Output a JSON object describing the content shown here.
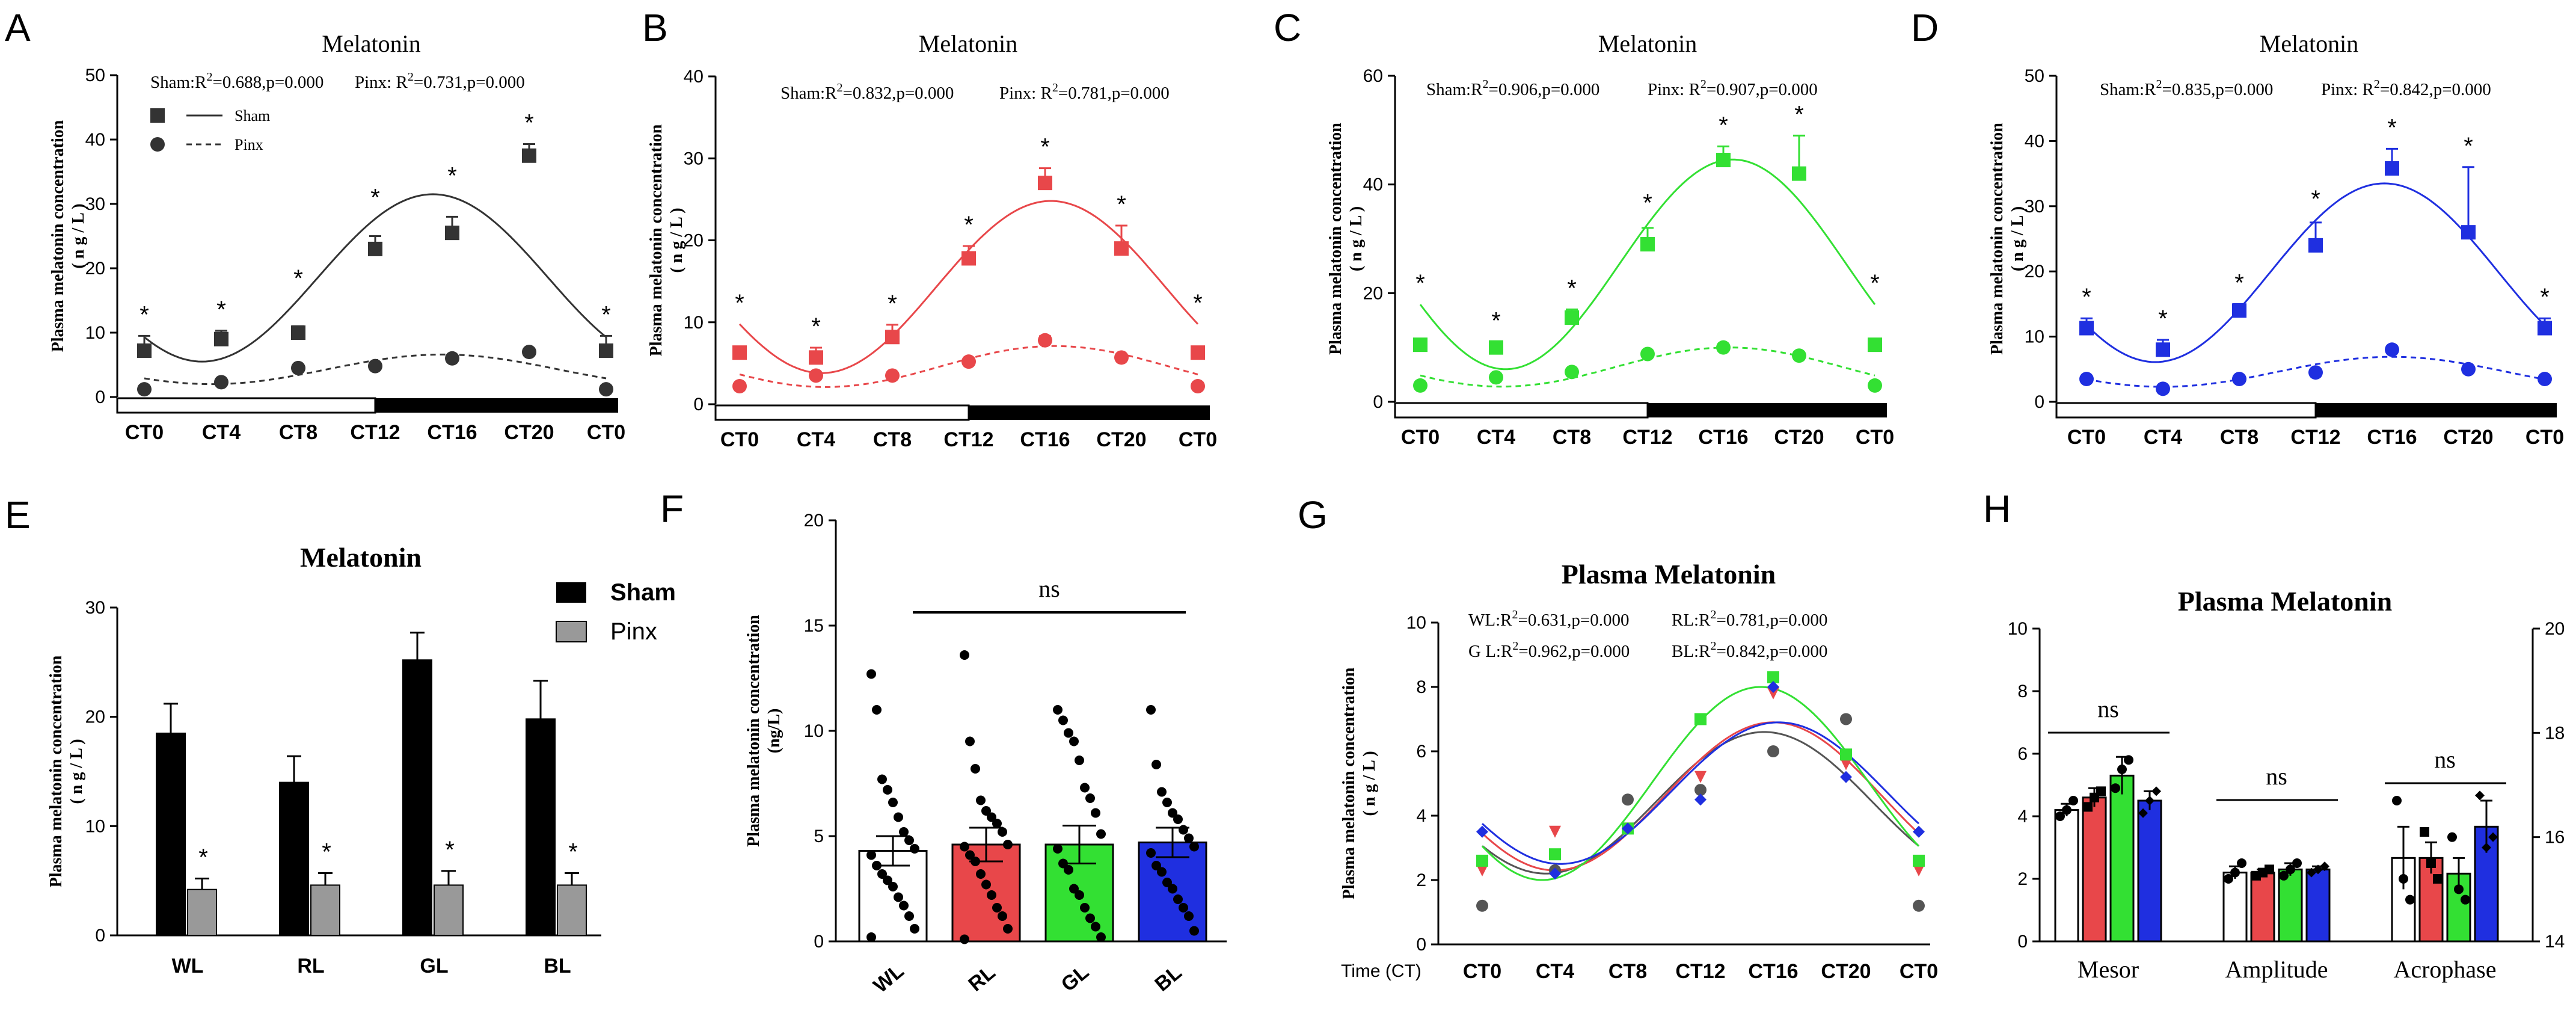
{
  "chart_data": [
    {
      "panel": "A",
      "type": "line",
      "title": "Melatonin",
      "ylabel": "Plasma melatonin concentration",
      "yunit": "( n g / L )",
      "ylim": [
        0,
        50
      ],
      "yticks": [
        "0",
        "10",
        "20",
        "30",
        "40",
        "50"
      ],
      "categories": [
        "CT0",
        "CT4",
        "CT8",
        "CT12",
        "CT16",
        "CT20",
        "CT0"
      ],
      "stats": [
        "Sham:R2=0.688,p=0.000",
        "Pinx: R2=0.731,p=0.000"
      ],
      "legend": [
        "Sham",
        "Pinx"
      ],
      "color": "#333333",
      "series": [
        {
          "name": "Sham",
          "values": [
            7.2,
            9.0,
            10.0,
            23.0,
            25.5,
            37.5,
            7.2
          ],
          "errors": [
            2.3,
            1.3,
            1.0,
            2.0,
            2.5,
            1.8,
            2.3
          ]
        },
        {
          "name": "Pinx",
          "values": [
            1.2,
            2.3,
            4.5,
            4.8,
            6.0,
            7.0,
            1.2
          ],
          "errors": [
            0.3,
            0.3,
            0.4,
            0.4,
            0.4,
            0.4,
            0.3
          ]
        }
      ],
      "fit_sham": {
        "mesor": 18.5,
        "amp": 13,
        "peak_ct": 15
      },
      "fit_pinx": {
        "mesor": 4.3,
        "amp": 2.3,
        "peak_ct": 15.5
      },
      "stars": [
        "*",
        "*",
        "*",
        "*",
        "*",
        "*",
        "*"
      ]
    },
    {
      "panel": "B",
      "type": "line",
      "title": "Melatonin",
      "ylabel": "Plasma melatonin concentration",
      "yunit": "( n g / L )",
      "ylim": [
        0,
        40
      ],
      "yticks": [
        "0",
        "10",
        "20",
        "30",
        "40"
      ],
      "categories": [
        "CT0",
        "CT4",
        "CT8",
        "CT12",
        "CT16",
        "CT20",
        "CT0"
      ],
      "stats": [
        "Sham:R2=0.832,p=0.000",
        "Pinx: R2=0.781,p=0.000"
      ],
      "color": "#e8474a",
      "series": [
        {
          "name": "Sham",
          "values": [
            6.3,
            5.7,
            8.2,
            17.8,
            27.0,
            19.0,
            6.3
          ],
          "errors": [
            0.6,
            1.2,
            1.5,
            1.5,
            1.8,
            2.8,
            0.6
          ]
        },
        {
          "name": "Pinx",
          "values": [
            2.2,
            3.5,
            3.5,
            5.2,
            7.8,
            5.7,
            2.2
          ],
          "errors": [
            0.3,
            0.3,
            0.3,
            0.4,
            0.5,
            0.4,
            0.3
          ]
        }
      ],
      "fit_sham": {
        "mesor": 14.3,
        "amp": 10.5,
        "peak_ct": 16.3
      },
      "fit_pinx": {
        "mesor": 4.6,
        "amp": 2.5,
        "peak_ct": 16.5
      },
      "stars": [
        "*",
        "*",
        "*",
        "*",
        "*",
        "*",
        "*"
      ]
    },
    {
      "panel": "C",
      "type": "line",
      "title": "Melatonin",
      "ylabel": "Plasma melatonin concentration",
      "yunit": "( n g / L )",
      "ylim": [
        0,
        60
      ],
      "yticks": [
        "0",
        "20",
        "40",
        "60"
      ],
      "categories": [
        "CT0",
        "CT4",
        "CT8",
        "CT12",
        "CT16",
        "CT20",
        "CT0"
      ],
      "stats": [
        "Sham:R2=0.906,p=0.000",
        "Pinx: R2=0.907,p=0.000"
      ],
      "color": "#33e033",
      "series": [
        {
          "name": "Sham",
          "values": [
            10.5,
            10.0,
            15.5,
            29.0,
            44.5,
            42.0,
            10.5
          ],
          "errors": [
            1.0,
            1.0,
            1.5,
            3.0,
            2.5,
            7.0,
            1.0
          ]
        },
        {
          "name": "Pinx",
          "values": [
            3.0,
            4.5,
            5.5,
            8.8,
            10.0,
            8.5,
            3.0
          ],
          "errors": [
            0.4,
            0.4,
            0.5,
            0.6,
            0.6,
            0.6,
            0.4
          ]
        }
      ],
      "fit_sham": {
        "mesor": 25.3,
        "amp": 19.3,
        "peak_ct": 16.5
      },
      "fit_pinx": {
        "mesor": 6.4,
        "amp": 3.6,
        "peak_ct": 16.3
      },
      "stars": [
        "*",
        "*",
        "*",
        "*",
        "*",
        "*",
        "*"
      ]
    },
    {
      "panel": "D",
      "type": "line",
      "title": "Melatonin",
      "ylabel": "Plasma melatonin concentration",
      "yunit": "( n g / L )",
      "ylim": [
        0,
        50
      ],
      "yticks": [
        "0",
        "10",
        "20",
        "30",
        "40",
        "50"
      ],
      "categories": [
        "CT0",
        "CT4",
        "CT8",
        "CT12",
        "CT16",
        "CT20",
        "CT0"
      ],
      "stats": [
        "Sham:R2=0.835,p=0.000",
        "Pinx: R2=0.842,p=0.000"
      ],
      "color": "#1f2fe0",
      "series": [
        {
          "name": "Sham",
          "values": [
            11.3,
            8.0,
            14.0,
            24.0,
            35.8,
            26.0,
            11.3
          ],
          "errors": [
            1.5,
            1.5,
            1.0,
            3.5,
            3.0,
            10.0,
            1.5
          ]
        },
        {
          "name": "Pinx",
          "values": [
            3.5,
            2.0,
            3.5,
            4.5,
            8.0,
            5.0,
            3.5
          ],
          "errors": [
            0.4,
            0.4,
            0.4,
            0.4,
            0.5,
            0.4,
            0.4
          ]
        }
      ],
      "fit_sham": {
        "mesor": 19.8,
        "amp": 13.7,
        "peak_ct": 15.6
      },
      "fit_pinx": {
        "mesor": 4.6,
        "amp": 2.3,
        "peak_ct": 16.0
      },
      "stars": [
        "*",
        "*",
        "*",
        "*",
        "*",
        "*",
        "*"
      ]
    },
    {
      "panel": "E",
      "type": "bar",
      "title": "Melatonin",
      "ylabel": "Plasma melatonin concentration",
      "yunit": "( n g / L )",
      "ylim": [
        0,
        30
      ],
      "yticks": [
        "0",
        "10",
        "20",
        "30"
      ],
      "categories": [
        "WL",
        "RL",
        "GL",
        "BL"
      ],
      "legend": [
        "Sham",
        "Pinx"
      ],
      "series": [
        {
          "name": "Sham",
          "color": "#000000",
          "values": [
            18.5,
            14.0,
            25.2,
            19.8
          ],
          "errors": [
            2.7,
            2.4,
            2.5,
            3.5
          ]
        },
        {
          "name": "Pinx",
          "color": "#999999",
          "values": [
            4.2,
            4.6,
            4.6,
            4.6
          ],
          "errors": [
            1.0,
            1.1,
            1.3,
            1.1
          ]
        }
      ],
      "stars": [
        "*",
        "*",
        "*",
        "*"
      ]
    },
    {
      "panel": "F",
      "type": "bar",
      "ylabel": "Plasma melatonin concentration",
      "yunit": "(ng/L)",
      "ylim": [
        0,
        20
      ],
      "yticks": [
        "0",
        "5",
        "10",
        "15",
        "20"
      ],
      "categories": [
        "WL",
        "RL",
        "GL",
        "BL"
      ],
      "colors": [
        "#ffffff",
        "#e8474a",
        "#33e033",
        "#1f2fe0"
      ],
      "values": [
        4.3,
        4.6,
        4.6,
        4.7
      ],
      "errors": [
        0.7,
        0.8,
        0.9,
        0.7
      ],
      "points": [
        [
          12.7,
          11.0,
          7.7,
          7.2,
          6.6,
          5.9,
          5.2,
          4.8,
          4.4,
          4.1,
          3.6,
          3.2,
          2.9,
          2.6,
          2.1,
          1.7,
          1.2,
          0.6,
          0.2
        ],
        [
          13.6,
          9.5,
          8.2,
          6.7,
          6.2,
          5.9,
          5.6,
          5.2,
          4.6,
          4.5,
          4.1,
          3.8,
          3.2,
          2.7,
          2.2,
          1.6,
          1.2,
          0.6,
          0.1
        ],
        [
          11.0,
          10.5,
          9.9,
          9.5,
          8.6,
          7.3,
          6.8,
          6.1,
          5.1,
          4.4,
          3.7,
          3.4,
          2.5,
          2.2,
          1.6,
          1.1,
          0.7,
          0.2
        ],
        [
          11.0,
          8.4,
          7.1,
          6.6,
          6.1,
          5.8,
          5.3,
          4.9,
          4.5,
          4.2,
          3.6,
          3.3,
          2.8,
          2.5,
          2.0,
          1.6,
          1.2,
          0.5
        ]
      ],
      "annotation": "ns"
    },
    {
      "panel": "G",
      "type": "line",
      "title": "Plasma Melatonin",
      "ylabel": "Plasma melatonin concentration",
      "yunit": "( n g / L )",
      "xlabel": "Time (CT)",
      "ylim": [
        0,
        10
      ],
      "yticks": [
        "0",
        "2",
        "4",
        "6",
        "8",
        "10"
      ],
      "categories": [
        "CT0",
        "CT4",
        "CT8",
        "CT12",
        "CT16",
        "CT20",
        "CT0"
      ],
      "stats": [
        "WL:R2=0.631,p=0.000",
        "RL:R2=0.781,p=0.000",
        "G L:R2=0.962,p=0.000",
        "BL:R2=0.842,p=0.000"
      ],
      "series": [
        {
          "name": "WL",
          "color": "#555555",
          "marker": "circle",
          "values": [
            1.2,
            2.3,
            4.5,
            4.8,
            6.0,
            7.0,
            1.2
          ],
          "fit": {
            "mesor": 4.4,
            "amp": 2.2,
            "peak_ct": 15.5
          }
        },
        {
          "name": "RL",
          "color": "#e8474a",
          "marker": "triangle-down",
          "values": [
            2.3,
            3.5,
            3.6,
            5.2,
            7.8,
            5.6,
            2.3
          ],
          "fit": {
            "mesor": 4.6,
            "amp": 2.3,
            "peak_ct": 16.0
          }
        },
        {
          "name": "GL",
          "color": "#33e033",
          "marker": "square",
          "values": [
            2.6,
            2.8,
            3.6,
            7.0,
            8.3,
            5.9,
            2.6
          ],
          "fit": {
            "mesor": 5.0,
            "amp": 3.0,
            "peak_ct": 15.3
          }
        },
        {
          "name": "BL",
          "color": "#1f2fe0",
          "marker": "diamond",
          "values": [
            3.5,
            2.2,
            3.6,
            4.5,
            8.0,
            5.2,
            3.5
          ],
          "fit": {
            "mesor": 4.7,
            "amp": 2.2,
            "peak_ct": 16.3
          }
        }
      ]
    },
    {
      "panel": "H",
      "type": "bar",
      "title": "Plasma Melatonin",
      "ylim": [
        0,
        10
      ],
      "yticks": [
        "0",
        "2",
        "4",
        "6",
        "8",
        "10"
      ],
      "y2lim": [
        14,
        20
      ],
      "y2ticks": [
        "14",
        "16",
        "18",
        "20"
      ],
      "categories": [
        "Mesor",
        "Amplitude",
        "Acrophase"
      ],
      "groups": [
        "WL",
        "RL",
        "GL",
        "BL"
      ],
      "colors": [
        "#ffffff",
        "#e8474a",
        "#33e033",
        "#1f2fe0"
      ],
      "values": [
        [
          4.2,
          4.6,
          5.3,
          4.5
        ],
        [
          2.2,
          2.2,
          2.3,
          2.3
        ],
        [
          15.6,
          15.6,
          15.3,
          16.2
        ]
      ],
      "errors": [
        [
          0.2,
          0.3,
          0.6,
          0.3
        ],
        [
          0.2,
          0.1,
          0.2,
          0.1
        ],
        [
          0.6,
          0.3,
          0.3,
          0.5
        ]
      ],
      "points": [
        [
          [
            4.0,
            4.2,
            4.5
          ],
          [
            4.3,
            4.6,
            4.8
          ],
          [
            4.9,
            5.5,
            5.8
          ],
          [
            4.1,
            4.5,
            4.8
          ]
        ],
        [
          [
            2.0,
            2.2,
            2.5
          ],
          [
            2.1,
            2.2,
            2.3
          ],
          [
            2.1,
            2.3,
            2.5
          ],
          [
            2.2,
            2.3,
            2.4
          ]
        ],
        [
          [
            16.7,
            15.2,
            14.8
          ],
          [
            16.1,
            15.5,
            15.2
          ],
          [
            16.0,
            15.0,
            14.8
          ],
          [
            16.8,
            15.8,
            16.0
          ]
        ]
      ],
      "annotation": [
        "ns",
        "ns",
        "ns"
      ]
    }
  ]
}
